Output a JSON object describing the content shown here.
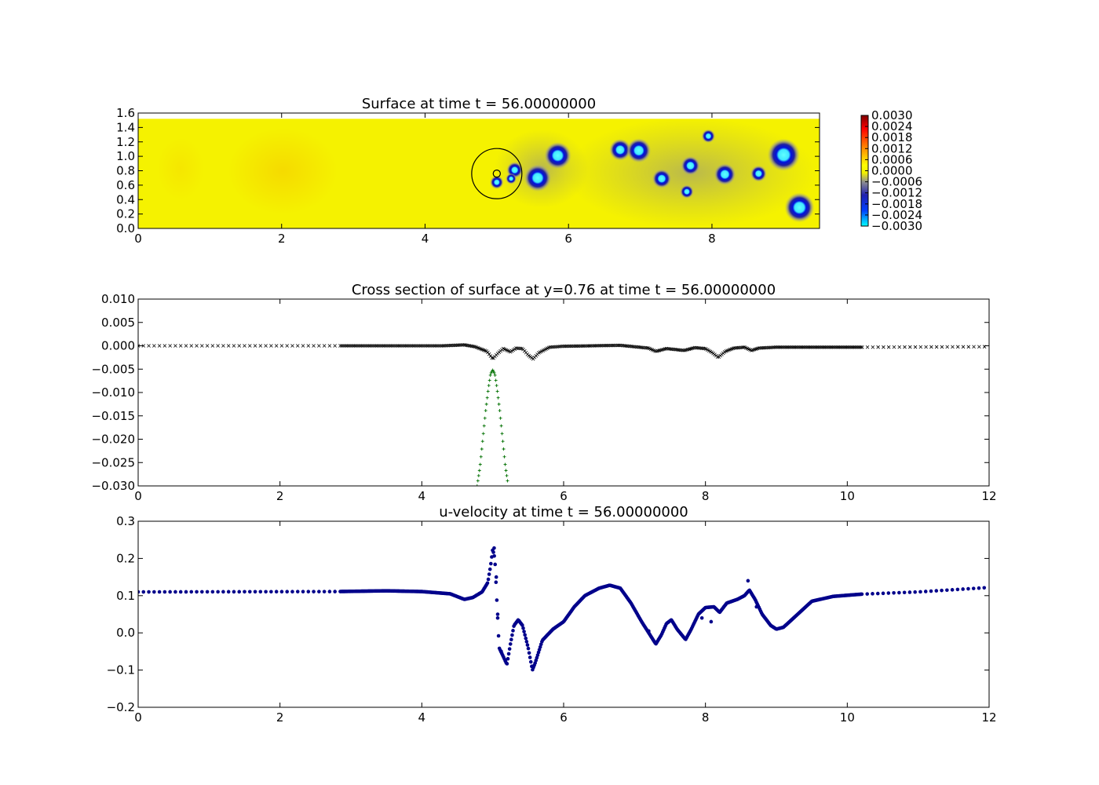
{
  "chart_data": [
    {
      "type": "heatmap",
      "title": "Surface at time t =    56.00000000",
      "xlim": [
        0,
        9.5
      ],
      "ylim": [
        0,
        1.6
      ],
      "xticks": [
        0,
        2,
        4,
        6,
        8
      ],
      "xtick_labels": [
        "0",
        "2",
        "4",
        "6",
        "8"
      ],
      "yticks": [
        0.0,
        0.2,
        0.4,
        0.6,
        0.8,
        1.0,
        1.2,
        1.4,
        1.6
      ],
      "ytick_labels": [
        "0.0",
        "0.2",
        "0.4",
        "0.6",
        "0.8",
        "1.0",
        "1.2",
        "1.4",
        "1.6"
      ],
      "data_ylim": [
        0,
        1.52
      ],
      "colorbar": {
        "range": [
          -0.003,
          0.003
        ],
        "ticks": [
          0.003,
          0.0024,
          0.0018,
          0.0012,
          0.0006,
          0.0,
          -0.0006,
          -0.0012,
          -0.0018,
          -0.0024,
          -0.003
        ],
        "tick_labels": [
          "0.0030",
          "0.0024",
          "0.0018",
          "0.0012",
          "0.0006",
          "0.0000",
          "−0.0006",
          "−0.0012",
          "−0.0018",
          "−0.0024",
          "−0.0030"
        ]
      },
      "depressions": [
        {
          "x": 5.57,
          "y": 0.7,
          "r": 0.1
        },
        {
          "x": 5.85,
          "y": 1.01,
          "r": 0.1
        },
        {
          "x": 5.25,
          "y": 0.81,
          "r": 0.06
        },
        {
          "x": 5.0,
          "y": 0.64,
          "r": 0.05
        },
        {
          "x": 5.2,
          "y": 0.69,
          "r": 0.04
        },
        {
          "x": 6.72,
          "y": 1.09,
          "r": 0.08
        },
        {
          "x": 6.98,
          "y": 1.08,
          "r": 0.09
        },
        {
          "x": 7.3,
          "y": 0.69,
          "r": 0.07
        },
        {
          "x": 7.7,
          "y": 0.87,
          "r": 0.07
        },
        {
          "x": 8.18,
          "y": 0.75,
          "r": 0.08
        },
        {
          "x": 8.65,
          "y": 0.76,
          "r": 0.06
        },
        {
          "x": 9.0,
          "y": 1.02,
          "r": 0.12
        },
        {
          "x": 9.22,
          "y": 0.29,
          "r": 0.11
        },
        {
          "x": 7.65,
          "y": 0.51,
          "r": 0.05
        },
        {
          "x": 7.95,
          "y": 1.28,
          "r": 0.05
        }
      ],
      "circle": {
        "x": 5.0,
        "y": 0.76,
        "r": 0.35
      },
      "small_circle": {
        "x": 5.0,
        "y": 0.76,
        "r": 0.05
      },
      "colors": {
        "background": "#f5f200",
        "depression": "#0020c0",
        "core": "#40ffff"
      }
    },
    {
      "type": "scatter",
      "title": "Cross section of surface at y=0.76 at time t =    56.00000000",
      "xlim": [
        0,
        12
      ],
      "ylim": [
        -0.03,
        0.01
      ],
      "xticks": [
        0,
        2,
        4,
        6,
        8,
        10,
        12
      ],
      "xtick_labels": [
        "0",
        "2",
        "4",
        "6",
        "8",
        "10",
        "12"
      ],
      "yticks": [
        0.01,
        0.005,
        0.0,
        -0.005,
        -0.01,
        -0.015,
        -0.02,
        -0.025,
        -0.03
      ],
      "ytick_labels": [
        "0.010",
        "0.005",
        "0.000",
        "−0.005",
        "−0.010",
        "−0.015",
        "−0.020",
        "−0.025",
        "−0.030"
      ],
      "series": [
        {
          "marker": "x",
          "color": "#000000",
          "profile": [
            [
              0,
              0.0
            ],
            [
              2.8,
              0.0
            ],
            [
              4.3,
              0.0
            ],
            [
              4.6,
              0.0002
            ],
            [
              4.75,
              -0.0002
            ],
            [
              4.92,
              -0.0012
            ],
            [
              5.0,
              -0.0028
            ],
            [
              5.08,
              -0.0015
            ],
            [
              5.15,
              -0.0006
            ],
            [
              5.25,
              -0.0013
            ],
            [
              5.33,
              -0.0005
            ],
            [
              5.42,
              -0.0006
            ],
            [
              5.5,
              -0.002
            ],
            [
              5.57,
              -0.0028
            ],
            [
              5.65,
              -0.0015
            ],
            [
              5.8,
              -0.0003
            ],
            [
              6.0,
              -0.0001
            ],
            [
              6.8,
              0.0001
            ],
            [
              7.2,
              -0.0005
            ],
            [
              7.3,
              -0.0012
            ],
            [
              7.45,
              -0.0006
            ],
            [
              7.7,
              -0.001
            ],
            [
              7.85,
              -0.0004
            ],
            [
              8.0,
              -0.0006
            ],
            [
              8.1,
              -0.0015
            ],
            [
              8.18,
              -0.0025
            ],
            [
              8.28,
              -0.0012
            ],
            [
              8.4,
              -0.0005
            ],
            [
              8.55,
              -0.0003
            ],
            [
              8.65,
              -0.001
            ],
            [
              8.75,
              -0.0005
            ],
            [
              9.0,
              -0.0003
            ],
            [
              10.2,
              -0.0003
            ],
            [
              12,
              -0.0002
            ]
          ]
        },
        {
          "marker": "+",
          "color": "#007000",
          "profile": [
            [
              4.78,
              -0.03
            ],
            [
              4.82,
              -0.026
            ],
            [
              4.86,
              -0.02
            ],
            [
              4.9,
              -0.014
            ],
            [
              4.94,
              -0.009
            ],
            [
              4.97,
              -0.006
            ],
            [
              5.0,
              -0.0052
            ],
            [
              5.03,
              -0.006
            ],
            [
              5.06,
              -0.009
            ],
            [
              5.1,
              -0.014
            ],
            [
              5.14,
              -0.02
            ],
            [
              5.18,
              -0.026
            ],
            [
              5.22,
              -0.03
            ]
          ]
        }
      ]
    },
    {
      "type": "scatter",
      "title": "u-velocity at time t =    56.00000000",
      "xlim": [
        0,
        12
      ],
      "ylim": [
        -0.2,
        0.3
      ],
      "xticks": [
        0,
        2,
        4,
        6,
        8,
        10,
        12
      ],
      "xtick_labels": [
        "0",
        "2",
        "4",
        "6",
        "8",
        "10",
        "12"
      ],
      "yticks": [
        0.3,
        0.2,
        0.1,
        0.0,
        -0.1,
        -0.2
      ],
      "ytick_labels": [
        "0.3",
        "0.2",
        "0.1",
        "0.0",
        "−0.1",
        "−0.2"
      ],
      "series": [
        {
          "marker": "o",
          "color": "#00008b",
          "profile": [
            [
              0,
              0.11
            ],
            [
              2.8,
              0.111
            ],
            [
              3.5,
              0.113
            ],
            [
              4.0,
              0.111
            ],
            [
              4.4,
              0.105
            ],
            [
              4.6,
              0.09
            ],
            [
              4.72,
              0.095
            ],
            [
              4.85,
              0.11
            ],
            [
              4.93,
              0.135
            ],
            [
              4.97,
              0.18
            ],
            [
              5.0,
              0.225
            ],
            [
              5.03,
              0.2
            ],
            [
              5.06,
              0.08
            ],
            [
              5.09,
              -0.04
            ],
            [
              5.14,
              -0.06
            ],
            [
              5.2,
              -0.085
            ],
            [
              5.25,
              -0.03
            ],
            [
              5.3,
              0.02
            ],
            [
              5.36,
              0.035
            ],
            [
              5.42,
              0.02
            ],
            [
              5.5,
              -0.04
            ],
            [
              5.56,
              -0.1
            ],
            [
              5.6,
              -0.08
            ],
            [
              5.7,
              -0.02
            ],
            [
              5.85,
              0.01
            ],
            [
              6.0,
              0.03
            ],
            [
              6.15,
              0.07
            ],
            [
              6.3,
              0.1
            ],
            [
              6.5,
              0.12
            ],
            [
              6.65,
              0.128
            ],
            [
              6.8,
              0.12
            ],
            [
              6.95,
              0.08
            ],
            [
              7.1,
              0.03
            ],
            [
              7.2,
              0.0
            ],
            [
              7.3,
              -0.03
            ],
            [
              7.38,
              -0.005
            ],
            [
              7.45,
              0.025
            ],
            [
              7.52,
              0.035
            ],
            [
              7.6,
              0.01
            ],
            [
              7.72,
              -0.018
            ],
            [
              7.8,
              0.01
            ],
            [
              7.9,
              0.05
            ],
            [
              8.0,
              0.068
            ],
            [
              8.12,
              0.07
            ],
            [
              8.2,
              0.055
            ],
            [
              8.3,
              0.08
            ],
            [
              8.45,
              0.09
            ],
            [
              8.55,
              0.1
            ],
            [
              8.62,
              0.115
            ],
            [
              8.7,
              0.09
            ],
            [
              8.8,
              0.05
            ],
            [
              8.92,
              0.02
            ],
            [
              9.0,
              0.01
            ],
            [
              9.1,
              0.015
            ],
            [
              9.3,
              0.05
            ],
            [
              9.5,
              0.085
            ],
            [
              9.8,
              0.098
            ],
            [
              10.2,
              0.104
            ],
            [
              11.0,
              0.11
            ],
            [
              12,
              0.122
            ]
          ]
        }
      ]
    }
  ]
}
